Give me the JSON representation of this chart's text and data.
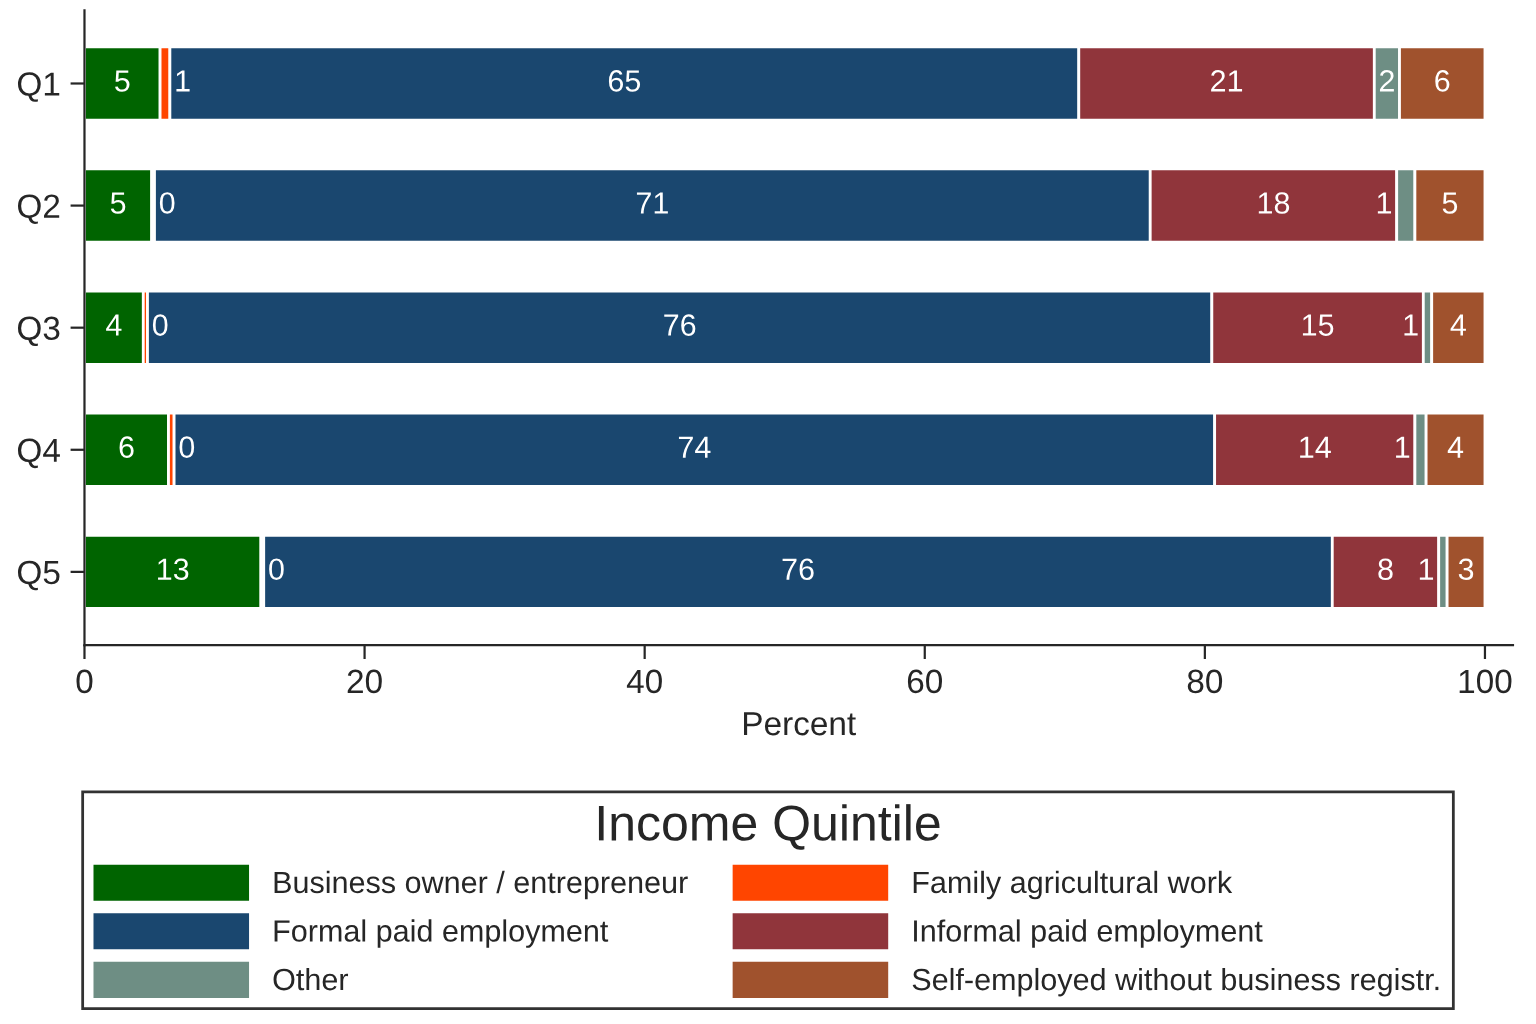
{
  "chart_data": {
    "type": "bar",
    "orientation": "horizontal",
    "stacked": true,
    "xlabel": "Percent",
    "legend_title": "Income Quintile",
    "legend": "bottom",
    "grid": false,
    "categories": [
      "Q1",
      "Q2",
      "Q3",
      "Q4",
      "Q5"
    ],
    "xlim": [
      0,
      102
    ],
    "xticks": [
      0,
      20,
      40,
      60,
      80,
      100
    ],
    "series": [
      {
        "name": "Business owner / entrepreneur",
        "color": "#006400",
        "values": [
          5.4,
          4.8,
          4.2,
          6.0,
          12.6
        ],
        "value_labels": [
          "5",
          "5",
          "4",
          "6",
          "13"
        ]
      },
      {
        "name": "Family agricultural work",
        "color": "#ff4500",
        "values": [
          0.7,
          0.2,
          0.3,
          0.4,
          0.2
        ],
        "value_labels": [
          "1",
          "0",
          "0",
          "0",
          "0"
        ]
      },
      {
        "name": "Formal paid employment",
        "color": "#1a476f",
        "values": [
          64.9,
          71.1,
          76.0,
          74.3,
          76.3
        ],
        "value_labels": [
          "65",
          "71",
          "76",
          "74",
          "76"
        ]
      },
      {
        "name": "Informal paid employment",
        "color": "#90353b",
        "values": [
          21.1,
          17.6,
          15.1,
          14.3,
          7.6
        ],
        "value_labels": [
          "21",
          "18",
          "15",
          "14",
          "8"
        ]
      },
      {
        "name": "Other",
        "color": "#6e8e84",
        "values": [
          1.8,
          1.3,
          0.6,
          0.8,
          0.6
        ],
        "value_labels": [
          "2",
          "1",
          "1",
          "1",
          "1"
        ]
      },
      {
        "name": "Self-employed without business registr.",
        "color": "#a0522d",
        "values": [
          6.1,
          5.0,
          3.8,
          4.2,
          2.7
        ],
        "value_labels": [
          "6",
          "5",
          "4",
          "4",
          "3"
        ]
      }
    ]
  }
}
